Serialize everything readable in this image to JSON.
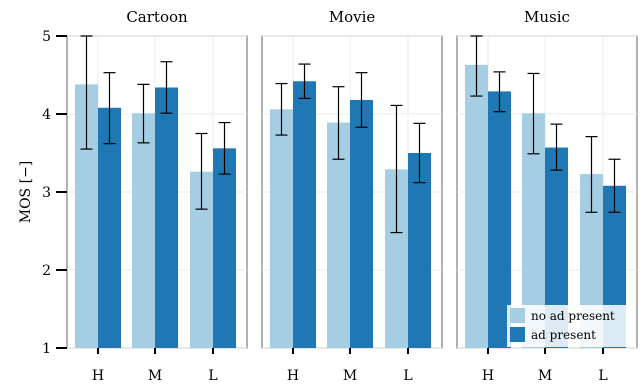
{
  "chart_data": {
    "type": "bar",
    "ylabel": "MOS [−]",
    "ylim": [
      1,
      5
    ],
    "yticks": [
      "1",
      "2",
      "3",
      "4",
      "5"
    ],
    "categories": [
      "H",
      "M",
      "L"
    ],
    "panels": [
      {
        "title": "Cartoon",
        "series": [
          {
            "name": "no ad present",
            "values": [
              4.38,
              4.01,
              3.26
            ],
            "err_low": [
              3.55,
              3.63,
              2.78
            ],
            "err_high": [
              5.0,
              4.38,
              3.75
            ]
          },
          {
            "name": "ad present",
            "values": [
              4.08,
              4.34,
              3.56
            ],
            "err_low": [
              3.62,
              4.01,
              3.23
            ],
            "err_high": [
              4.53,
              4.67,
              3.89
            ]
          }
        ]
      },
      {
        "title": "Movie",
        "series": [
          {
            "name": "no ad present",
            "values": [
              4.06,
              3.89,
              3.29
            ],
            "err_low": [
              3.73,
              3.42,
              2.48
            ],
            "err_high": [
              4.39,
              4.35,
              4.11
            ]
          },
          {
            "name": "ad present",
            "values": [
              4.42,
              4.18,
              3.5
            ],
            "err_low": [
              4.2,
              3.83,
              3.12
            ],
            "err_high": [
              4.64,
              4.53,
              3.88
            ]
          }
        ]
      },
      {
        "title": "Music",
        "series": [
          {
            "name": "no ad present",
            "values": [
              4.63,
              4.01,
              3.23
            ],
            "err_low": [
              4.23,
              3.49,
              2.74
            ],
            "err_high": [
              5.0,
              4.52,
              3.71
            ]
          },
          {
            "name": "ad present",
            "values": [
              4.29,
              3.57,
              3.08
            ],
            "err_low": [
              4.03,
              3.28,
              2.74
            ],
            "err_high": [
              4.54,
              3.87,
              3.42
            ]
          }
        ]
      }
    ],
    "legend": {
      "placement": "bottom-right",
      "entries": [
        "no ad present",
        "ad present"
      ]
    },
    "colors": {
      "no ad present": "#a6cee3",
      "ad present": "#1f78b4"
    },
    "grid": true
  }
}
